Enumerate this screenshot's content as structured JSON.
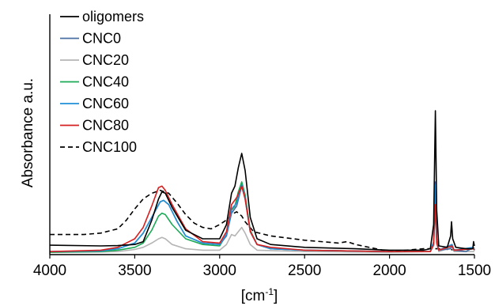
{
  "chart_data": {
    "type": "line",
    "title": "",
    "xlabel_main": "[cm",
    "xlabel_sup": "-1",
    "xlabel_end": "]",
    "ylabel": "Absorbance a.u.",
    "xlim": [
      4000,
      1500
    ],
    "x_reversed": true,
    "x_ticks": [
      4000,
      3500,
      3000,
      2500,
      2000,
      1500
    ],
    "x_tick_labels": [
      "4000",
      "3500",
      "3000",
      "2500",
      "2000",
      "1500"
    ],
    "ylim": [
      0,
      1
    ],
    "y_ticks_shown": false,
    "grid": false,
    "legend_position": "top-left",
    "series": [
      {
        "name": "oligomers",
        "color": "#000000",
        "dash": "solid",
        "points": [
          [
            4000,
            0.055
          ],
          [
            3700,
            0.05
          ],
          [
            3600,
            0.052
          ],
          [
            3500,
            0.06
          ],
          [
            3450,
            0.08
          ],
          [
            3400,
            0.23
          ],
          [
            3360,
            0.38
          ],
          [
            3340,
            0.43
          ],
          [
            3320,
            0.42
          ],
          [
            3280,
            0.32
          ],
          [
            3200,
            0.16
          ],
          [
            3100,
            0.1
          ],
          [
            3000,
            0.1
          ],
          [
            2960,
            0.2
          ],
          [
            2930,
            0.42
          ],
          [
            2910,
            0.47
          ],
          [
            2890,
            0.6
          ],
          [
            2870,
            0.7
          ],
          [
            2850,
            0.58
          ],
          [
            2820,
            0.25
          ],
          [
            2780,
            0.1
          ],
          [
            2700,
            0.06
          ],
          [
            2500,
            0.04
          ],
          [
            2200,
            0.03
          ],
          [
            2000,
            0.02
          ],
          [
            1800,
            0.02
          ],
          [
            1760,
            0.03
          ],
          [
            1740,
            0.2
          ],
          [
            1730,
            1.0
          ],
          [
            1722,
            0.3
          ],
          [
            1710,
            0.05
          ],
          [
            1660,
            0.04
          ],
          [
            1640,
            0.12
          ],
          [
            1635,
            0.22
          ],
          [
            1628,
            0.1
          ],
          [
            1610,
            0.04
          ],
          [
            1550,
            0.03
          ],
          [
            1510,
            0.03
          ],
          [
            1505,
            0.08
          ],
          [
            1500,
            0.05
          ]
        ]
      },
      {
        "name": "CNC0",
        "color": "#4a6fa5",
        "dash": "solid",
        "points": [
          [
            4000,
            0.01
          ],
          [
            3700,
            0.015
          ],
          [
            3600,
            0.03
          ],
          [
            3500,
            0.07
          ],
          [
            3450,
            0.14
          ],
          [
            3400,
            0.25
          ],
          [
            3350,
            0.36
          ],
          [
            3330,
            0.37
          ],
          [
            3300,
            0.34
          ],
          [
            3250,
            0.22
          ],
          [
            3200,
            0.12
          ],
          [
            3100,
            0.07
          ],
          [
            3000,
            0.06
          ],
          [
            2960,
            0.12
          ],
          [
            2930,
            0.28
          ],
          [
            2900,
            0.33
          ],
          [
            2870,
            0.47
          ],
          [
            2850,
            0.38
          ],
          [
            2820,
            0.15
          ],
          [
            2780,
            0.06
          ],
          [
            2700,
            0.03
          ],
          [
            2500,
            0.02
          ],
          [
            2000,
            0.01
          ],
          [
            1760,
            0.01
          ],
          [
            1740,
            0.08
          ],
          [
            1730,
            0.5
          ],
          [
            1722,
            0.1
          ],
          [
            1710,
            0.02
          ],
          [
            1640,
            0.03
          ],
          [
            1632,
            0.06
          ],
          [
            1620,
            0.02
          ],
          [
            1550,
            0.01
          ],
          [
            1505,
            0.04
          ],
          [
            1500,
            0.02
          ]
        ]
      },
      {
        "name": "CNC20",
        "color": "#b5b5b5",
        "dash": "solid",
        "points": [
          [
            4000,
            0.005
          ],
          [
            3700,
            0.007
          ],
          [
            3600,
            0.01
          ],
          [
            3500,
            0.025
          ],
          [
            3450,
            0.04
          ],
          [
            3400,
            0.07
          ],
          [
            3360,
            0.1
          ],
          [
            3340,
            0.11
          ],
          [
            3320,
            0.1
          ],
          [
            3280,
            0.06
          ],
          [
            3200,
            0.03
          ],
          [
            3100,
            0.02
          ],
          [
            3000,
            0.02
          ],
          [
            2960,
            0.06
          ],
          [
            2930,
            0.13
          ],
          [
            2910,
            0.12
          ],
          [
            2890,
            0.15
          ],
          [
            2870,
            0.18
          ],
          [
            2850,
            0.14
          ],
          [
            2820,
            0.06
          ],
          [
            2780,
            0.02
          ],
          [
            2500,
            0.01
          ],
          [
            2000,
            0.005
          ],
          [
            1760,
            0.01
          ],
          [
            1740,
            0.05
          ],
          [
            1730,
            0.36
          ],
          [
            1722,
            0.07
          ],
          [
            1710,
            0.01
          ],
          [
            1632,
            0.04
          ],
          [
            1620,
            0.01
          ],
          [
            1500,
            0.01
          ]
        ]
      },
      {
        "name": "CNC40",
        "color": "#1aaa55",
        "dash": "solid",
        "points": [
          [
            4000,
            0.005
          ],
          [
            3700,
            0.01
          ],
          [
            3600,
            0.02
          ],
          [
            3500,
            0.04
          ],
          [
            3450,
            0.07
          ],
          [
            3400,
            0.16
          ],
          [
            3360,
            0.26
          ],
          [
            3340,
            0.28
          ],
          [
            3320,
            0.27
          ],
          [
            3280,
            0.2
          ],
          [
            3200,
            0.1
          ],
          [
            3100,
            0.06
          ],
          [
            3000,
            0.05
          ],
          [
            2960,
            0.13
          ],
          [
            2930,
            0.3
          ],
          [
            2910,
            0.33
          ],
          [
            2890,
            0.43
          ],
          [
            2870,
            0.5
          ],
          [
            2850,
            0.41
          ],
          [
            2820,
            0.16
          ],
          [
            2780,
            0.06
          ],
          [
            2700,
            0.03
          ],
          [
            2500,
            0.02
          ],
          [
            2000,
            0.01
          ],
          [
            1760,
            0.01
          ],
          [
            1740,
            0.07
          ],
          [
            1730,
            0.42
          ],
          [
            1722,
            0.09
          ],
          [
            1710,
            0.02
          ],
          [
            1632,
            0.05
          ],
          [
            1620,
            0.02
          ],
          [
            1505,
            0.03
          ],
          [
            1500,
            0.02
          ]
        ]
      },
      {
        "name": "CNC60",
        "color": "#1f8fd6",
        "dash": "solid",
        "points": [
          [
            4000,
            0.01
          ],
          [
            3700,
            0.015
          ],
          [
            3600,
            0.03
          ],
          [
            3500,
            0.07
          ],
          [
            3450,
            0.14
          ],
          [
            3400,
            0.25
          ],
          [
            3350,
            0.36
          ],
          [
            3330,
            0.37
          ],
          [
            3300,
            0.34
          ],
          [
            3250,
            0.22
          ],
          [
            3200,
            0.12
          ],
          [
            3100,
            0.07
          ],
          [
            3000,
            0.06
          ],
          [
            2960,
            0.13
          ],
          [
            2930,
            0.31
          ],
          [
            2900,
            0.35
          ],
          [
            2870,
            0.48
          ],
          [
            2850,
            0.39
          ],
          [
            2820,
            0.15
          ],
          [
            2780,
            0.06
          ],
          [
            2700,
            0.03
          ],
          [
            2500,
            0.02
          ],
          [
            2000,
            0.01
          ],
          [
            1760,
            0.01
          ],
          [
            1740,
            0.08
          ],
          [
            1730,
            0.48
          ],
          [
            1722,
            0.1
          ],
          [
            1710,
            0.02
          ],
          [
            1632,
            0.06
          ],
          [
            1620,
            0.02
          ],
          [
            1505,
            0.04
          ],
          [
            1500,
            0.02
          ]
        ]
      },
      {
        "name": "CNC80",
        "color": "#d62020",
        "dash": "solid",
        "points": [
          [
            4000,
            0.01
          ],
          [
            3700,
            0.02
          ],
          [
            3600,
            0.04
          ],
          [
            3500,
            0.1
          ],
          [
            3450,
            0.18
          ],
          [
            3400,
            0.33
          ],
          [
            3360,
            0.46
          ],
          [
            3340,
            0.47
          ],
          [
            3320,
            0.44
          ],
          [
            3280,
            0.34
          ],
          [
            3200,
            0.17
          ],
          [
            3100,
            0.08
          ],
          [
            3000,
            0.07
          ],
          [
            2960,
            0.15
          ],
          [
            2930,
            0.34
          ],
          [
            2900,
            0.39
          ],
          [
            2870,
            0.47
          ],
          [
            2850,
            0.38
          ],
          [
            2820,
            0.15
          ],
          [
            2780,
            0.06
          ],
          [
            2700,
            0.04
          ],
          [
            2500,
            0.02
          ],
          [
            2000,
            0.01
          ],
          [
            1760,
            0.01
          ],
          [
            1740,
            0.06
          ],
          [
            1730,
            0.34
          ],
          [
            1722,
            0.07
          ],
          [
            1710,
            0.02
          ],
          [
            1632,
            0.05
          ],
          [
            1620,
            0.02
          ],
          [
            1505,
            0.03
          ],
          [
            1500,
            0.02
          ]
        ]
      },
      {
        "name": "CNC100",
        "color": "#000000",
        "dash": "dashed",
        "points": [
          [
            4000,
            0.13
          ],
          [
            3800,
            0.13
          ],
          [
            3700,
            0.14
          ],
          [
            3600,
            0.17
          ],
          [
            3550,
            0.23
          ],
          [
            3500,
            0.31
          ],
          [
            3450,
            0.38
          ],
          [
            3400,
            0.42
          ],
          [
            3350,
            0.44
          ],
          [
            3300,
            0.42
          ],
          [
            3250,
            0.35
          ],
          [
            3200,
            0.27
          ],
          [
            3150,
            0.21
          ],
          [
            3100,
            0.18
          ],
          [
            3050,
            0.17
          ],
          [
            3000,
            0.2
          ],
          [
            2950,
            0.24
          ],
          [
            2930,
            0.27
          ],
          [
            2900,
            0.29
          ],
          [
            2870,
            0.26
          ],
          [
            2850,
            0.22
          ],
          [
            2800,
            0.15
          ],
          [
            2700,
            0.12
          ],
          [
            2500,
            0.09
          ],
          [
            2300,
            0.07
          ],
          [
            2250,
            0.08
          ],
          [
            2200,
            0.06
          ],
          [
            2000,
            0.01
          ],
          [
            1900,
            0.02
          ],
          [
            1800,
            0.03
          ],
          [
            1700,
            0.03
          ],
          [
            1600,
            0.02
          ],
          [
            1500,
            0.03
          ]
        ]
      }
    ]
  }
}
